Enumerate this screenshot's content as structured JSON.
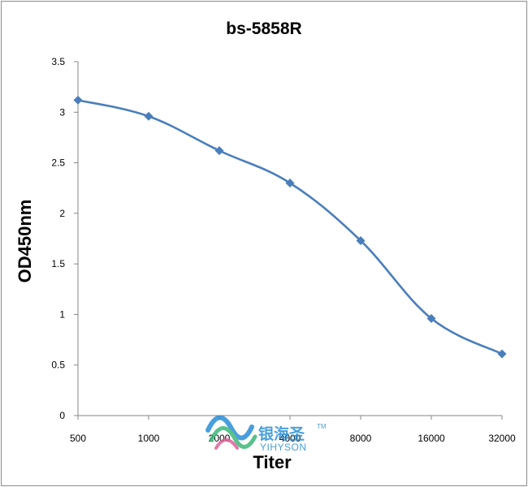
{
  "chart_data": {
    "type": "line",
    "title": "bs-5858R",
    "xlabel": "Titer",
    "ylabel": "OD450nm",
    "categories": [
      "500",
      "1000",
      "2000",
      "4000",
      "8000",
      "16000",
      "32000"
    ],
    "series": [
      {
        "values": [
          3.12,
          2.96,
          2.62,
          2.3,
          1.73,
          0.96,
          0.61
        ],
        "color": "#4a7ebb",
        "marker": "diamond",
        "smooth": true
      }
    ],
    "ylim": [
      0,
      3.5
    ],
    "yticks": [
      "0",
      "0.5",
      "1",
      "1.5",
      "2",
      "2.5",
      "3",
      "3.5"
    ],
    "grid": false,
    "legend": "none"
  },
  "watermark": {
    "text_cn": "银海圣",
    "text_en": "YIHYSON",
    "trademark": "TM",
    "colors": {
      "blue": "#2a8fd8",
      "green": "#3cb878",
      "pink": "#e0609a"
    }
  }
}
